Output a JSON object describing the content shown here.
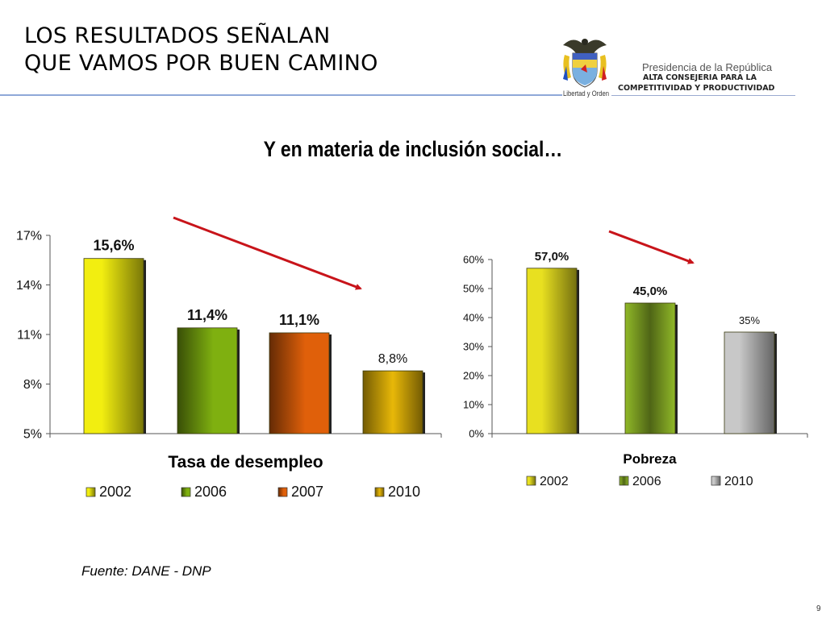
{
  "header": {
    "title_line1": "LOS RESULTADOS SEÑALAN",
    "title_line2": "QUE VAMOS POR BUEN CAMINO",
    "logo": {
      "motto": "Libertad y Orden",
      "line1": "Presidencia de la República",
      "line2": "ALTA CONSEJERIA PARA LA",
      "line3": "COMPETITIVIDAD Y PRODUCTIVIDAD"
    },
    "rule_color": "#8fa8d8"
  },
  "subtitle": "Y en materia de inclusión social…",
  "chart_data": [
    {
      "type": "bar",
      "title": "Tasa de desempleo",
      "categories": [
        "2002",
        "2006",
        "2007",
        "2010"
      ],
      "values": [
        15.6,
        11.4,
        11.1,
        8.8
      ],
      "data_labels": [
        "15,6%",
        "11,4%",
        "11,1%",
        "8,8%"
      ],
      "label_bold": [
        true,
        true,
        true,
        false
      ],
      "colors": [
        "#f2ee10",
        "#7fb010",
        "#e0600a",
        "#e8b808"
      ],
      "ylim": [
        5,
        17
      ],
      "yticks": [
        5,
        8,
        11,
        14,
        17
      ],
      "ytick_labels": [
        "5%",
        "8%",
        "11%",
        "14%",
        "17%"
      ],
      "xlabel": "",
      "ylabel": "",
      "legend": [
        "2002",
        "2006",
        "2007",
        "2010"
      ],
      "legend_position": "bottom",
      "trend_arrow": "down",
      "grid": false
    },
    {
      "type": "bar",
      "title": "Pobreza",
      "categories": [
        "2002",
        "2006",
        "2010"
      ],
      "values": [
        57.0,
        45.0,
        35.0
      ],
      "data_labels": [
        "57,0%",
        "45,0%",
        "35%"
      ],
      "label_bold": [
        true,
        true,
        false
      ],
      "colors": [
        "#e8e020",
        "#90b828",
        "#c8c8c8"
      ],
      "ylim": [
        0,
        60
      ],
      "yticks": [
        0,
        10,
        20,
        30,
        40,
        50,
        60
      ],
      "ytick_labels": [
        "0%",
        "10%",
        "20%",
        "30%",
        "40%",
        "50%",
        "60%"
      ],
      "xlabel": "",
      "ylabel": "",
      "legend": [
        "2002",
        "2006",
        "2010"
      ],
      "legend_position": "bottom",
      "trend_arrow": "down",
      "grid": false
    }
  ],
  "footer": {
    "source": "Fuente: DANE - DNP",
    "page_number": "9"
  },
  "accent": {
    "arrow_color": "#c8141a"
  }
}
